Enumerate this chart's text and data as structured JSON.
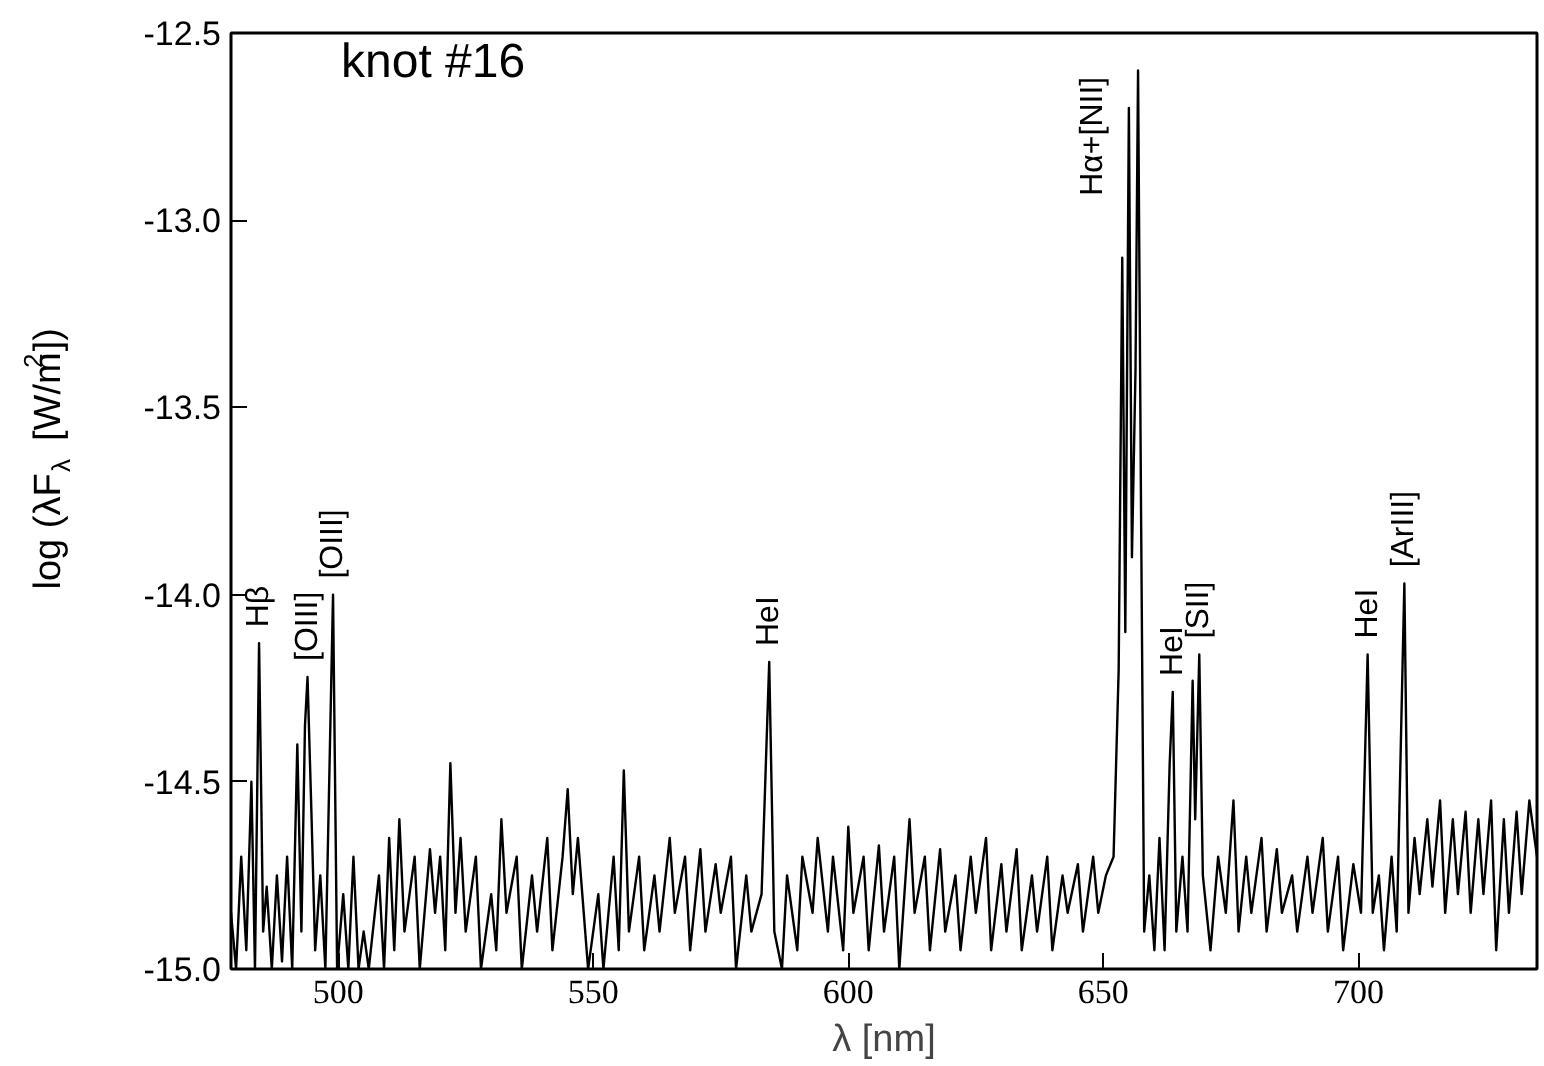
{
  "chart_data": {
    "type": "line",
    "xlabel": "λ [nm]",
    "ylabel": "log (λF$_{λ}$ [W/m$^{2}$])",
    "xlim": [
      479,
      735
    ],
    "ylim": [
      -15,
      -12.5
    ],
    "xticks": [
      500,
      550,
      600,
      650,
      700
    ],
    "yticks": [
      {
        "value": -15,
        "label": "-15.0"
      },
      {
        "value": -14.5,
        "label": "-14.5"
      },
      {
        "value": -14,
        "label": "-14.0"
      },
      {
        "value": -13.5,
        "label": "-13.5"
      },
      {
        "value": -13,
        "label": "-13.0"
      },
      {
        "value": -12.5,
        "label": "-12.5"
      }
    ],
    "grid": false,
    "line_style": "solid",
    "annotations": [
      "knot #16",
      {
        "text": "Hβ",
        "x": 484.5,
        "y": -14.13
      },
      {
        "text": "[OIII]",
        "x": 494,
        "y": -14.22
      },
      {
        "text": "[OIII]",
        "x": 499,
        "y": -14.0
      },
      {
        "text": "HeI",
        "x": 584.5,
        "y": -14.18
      },
      {
        "text": "Hα+[NII]",
        "x": 653.7,
        "y": -13.1
      },
      {
        "text": "HeI",
        "x": 663.6,
        "y": -14.26
      },
      {
        "text": "[SII]",
        "x": 668.8,
        "y": -14.16
      },
      {
        "text": "HeI",
        "x": 701.8,
        "y": -14.16
      },
      {
        "text": "[ArIII]",
        "x": 709,
        "y": -13.97
      }
    ],
    "series": [
      {
        "color": "#000000",
        "x": [
          479,
          480,
          481,
          482,
          483,
          483.7,
          484.5,
          485.3,
          486,
          487,
          488,
          489,
          490,
          491,
          492,
          492.8,
          493.5,
          494,
          494.8,
          495.5,
          496.5,
          497.5,
          499,
          499.8,
          501,
          502,
          503,
          504,
          505,
          506,
          508,
          509,
          510,
          511,
          512,
          513,
          515,
          516,
          518,
          519,
          520,
          521,
          522,
          523,
          524,
          525,
          527,
          528,
          530,
          531,
          532,
          533,
          535,
          536,
          538,
          539,
          541,
          542,
          544,
          545,
          546,
          547,
          549,
          551,
          552,
          554,
          555,
          556,
          557,
          559,
          560,
          562,
          563,
          565,
          566,
          568,
          569,
          571,
          572,
          574,
          575,
          577,
          578,
          580,
          581,
          583,
          584.5,
          585.5,
          587,
          588,
          590,
          591,
          593,
          594,
          596,
          597,
          599,
          600,
          601,
          603,
          604,
          606,
          607,
          609,
          610,
          612,
          613,
          615,
          616,
          618,
          619,
          621,
          622,
          624,
          625,
          627,
          628,
          630,
          631,
          633,
          634,
          636,
          637,
          639,
          640,
          642,
          643,
          645,
          646,
          648,
          649,
          650.5,
          652,
          653,
          653.7,
          654.3,
          655,
          655.6,
          656.3,
          656.8,
          657.4,
          658,
          659,
          660,
          661,
          662,
          663,
          663.6,
          664.3,
          665.5,
          666.5,
          667.5,
          668,
          668.8,
          669.5,
          671,
          672.5,
          674,
          675.5,
          676.5,
          678,
          679,
          681,
          682,
          684,
          685,
          687,
          688,
          690,
          691,
          693,
          694,
          696,
          697,
          699,
          700.5,
          701.8,
          702.8,
          704,
          705,
          706.5,
          707.5,
          709,
          709.8,
          711,
          712,
          713.5,
          714.5,
          716,
          717,
          718.5,
          719.5,
          721,
          722,
          723.5,
          724.5,
          726,
          727,
          728.5,
          729.5,
          731,
          732,
          733.5,
          735
        ],
        "values": [
          -14.85,
          -15.0,
          -14.7,
          -14.95,
          -14.5,
          -15.0,
          -14.13,
          -14.9,
          -14.78,
          -15.0,
          -14.75,
          -14.98,
          -14.7,
          -15.0,
          -14.4,
          -14.9,
          -14.35,
          -14.22,
          -14.6,
          -14.95,
          -14.75,
          -15.0,
          -14.0,
          -15.0,
          -14.8,
          -15.0,
          -14.7,
          -15.0,
          -14.9,
          -15.0,
          -14.75,
          -15.0,
          -14.65,
          -14.95,
          -14.6,
          -14.9,
          -14.7,
          -15.0,
          -14.68,
          -14.85,
          -14.7,
          -14.95,
          -14.45,
          -14.85,
          -14.65,
          -14.9,
          -14.7,
          -15.0,
          -14.8,
          -14.95,
          -14.6,
          -14.85,
          -14.7,
          -15.0,
          -14.75,
          -14.9,
          -14.65,
          -14.95,
          -14.7,
          -14.52,
          -14.8,
          -14.65,
          -15.0,
          -14.8,
          -15.0,
          -14.7,
          -14.95,
          -14.47,
          -14.9,
          -14.7,
          -14.95,
          -14.75,
          -14.9,
          -14.65,
          -14.85,
          -14.7,
          -14.95,
          -14.68,
          -14.9,
          -14.72,
          -14.85,
          -14.7,
          -15.0,
          -14.75,
          -14.9,
          -14.8,
          -14.18,
          -14.9,
          -15.0,
          -14.75,
          -14.95,
          -14.7,
          -14.85,
          -14.65,
          -14.9,
          -14.7,
          -14.95,
          -14.62,
          -14.85,
          -14.7,
          -14.95,
          -14.67,
          -14.9,
          -14.7,
          -15.0,
          -14.6,
          -14.85,
          -14.7,
          -14.95,
          -14.68,
          -14.9,
          -14.75,
          -14.95,
          -14.7,
          -14.85,
          -14.65,
          -14.95,
          -14.72,
          -14.9,
          -14.68,
          -14.95,
          -14.75,
          -14.9,
          -14.7,
          -14.95,
          -14.75,
          -14.85,
          -14.72,
          -14.9,
          -14.7,
          -14.85,
          -14.75,
          -14.7,
          -14.2,
          -13.1,
          -14.1,
          -12.7,
          -13.9,
          -13.4,
          -12.6,
          -13.8,
          -14.9,
          -14.75,
          -14.95,
          -14.65,
          -14.95,
          -14.45,
          -14.26,
          -14.9,
          -14.7,
          -14.9,
          -14.23,
          -14.6,
          -14.16,
          -14.75,
          -14.95,
          -14.7,
          -14.85,
          -14.55,
          -14.9,
          -14.7,
          -14.85,
          -14.65,
          -14.9,
          -14.68,
          -14.85,
          -14.75,
          -14.9,
          -14.7,
          -14.85,
          -14.65,
          -14.9,
          -14.7,
          -14.95,
          -14.72,
          -14.85,
          -14.16,
          -14.85,
          -14.75,
          -14.95,
          -14.7,
          -14.9,
          -13.97,
          -14.85,
          -14.65,
          -14.8,
          -14.6,
          -14.78,
          -14.55,
          -14.85,
          -14.6,
          -14.8,
          -14.58,
          -14.85,
          -14.6,
          -14.8,
          -14.55,
          -14.95,
          -14.6,
          -14.85,
          -14.58,
          -14.8,
          -14.55,
          -14.7
        ]
      }
    ]
  }
}
